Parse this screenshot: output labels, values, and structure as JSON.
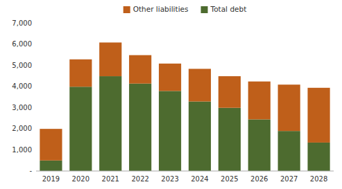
{
  "chart_data": {
    "type": "bar",
    "stacked": true,
    "categories": [
      "2019",
      "2020",
      "2021",
      "2022",
      "2023",
      "2024",
      "2025",
      "2026",
      "2027",
      "2028"
    ],
    "series": [
      {
        "name": "Total debt",
        "color": "#4d6b2f",
        "values": [
          500,
          4000,
          4500,
          4150,
          3800,
          3300,
          3000,
          2450,
          1900,
          1350
        ]
      },
      {
        "name": "Other liabilities",
        "color": "#bf5f1a",
        "values": [
          1500,
          1300,
          1600,
          1350,
          1300,
          1550,
          1500,
          1800,
          2200,
          2600
        ]
      }
    ],
    "ylim": [
      0,
      7000
    ],
    "yticks": [
      {
        "value": 0,
        "label": "-"
      },
      {
        "value": 1000,
        "label": "1,000"
      },
      {
        "value": 2000,
        "label": "2,000"
      },
      {
        "value": 3000,
        "label": "3,000"
      },
      {
        "value": 4000,
        "label": "4,000"
      },
      {
        "value": 5000,
        "label": "5,000"
      },
      {
        "value": 6000,
        "label": "6,000"
      },
      {
        "value": 7000,
        "label": "7,000"
      }
    ],
    "grid": false,
    "legend": "top"
  }
}
